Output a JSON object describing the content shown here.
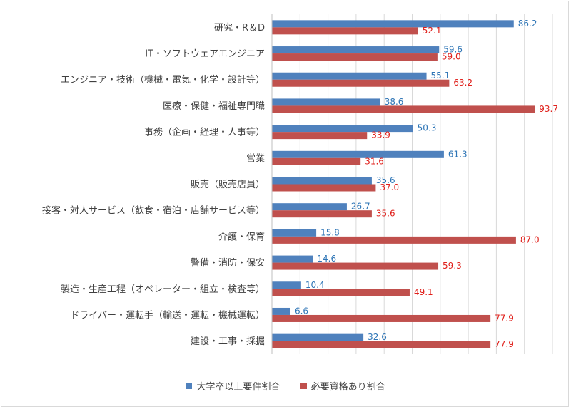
{
  "chart_data": {
    "type": "bar",
    "orientation": "horizontal",
    "categories": [
      "研究・R＆D",
      "IT・ソフトウェアエンジニア",
      "エンジニア・技術（機械・電気・化学・設計等）",
      "医療・保健・福祉専門職",
      "事務（企画・経理・人事等）",
      "営業",
      "販売（販売店員）",
      "接客・対人サービス（飲食・宿泊・店舗サービス等）",
      "介護・保育",
      "警備・消防・保安",
      "製造・生産工程（オペレーター・組立・検査等）",
      "ドライバー・運転手（輸送・運転・機械運転）",
      "建設・工事・採掘"
    ],
    "series": [
      {
        "name": "大学卒以上要件割合",
        "color": "#4f81bd",
        "label_color": "#2e75b6",
        "values": [
          86.2,
          59.6,
          55.1,
          38.6,
          50.3,
          61.3,
          35.6,
          26.7,
          15.8,
          14.6,
          10.4,
          6.6,
          32.6
        ]
      },
      {
        "name": "必要資格あり割合",
        "color": "#c0504d",
        "label_color": "#e0201b",
        "values": [
          52.1,
          59.0,
          63.2,
          93.7,
          33.9,
          31.6,
          37.0,
          35.6,
          87.0,
          59.3,
          49.1,
          77.9,
          77.9
        ]
      }
    ],
    "xlim": [
      0,
      100
    ],
    "grid": true,
    "legend_position": "bottom"
  }
}
